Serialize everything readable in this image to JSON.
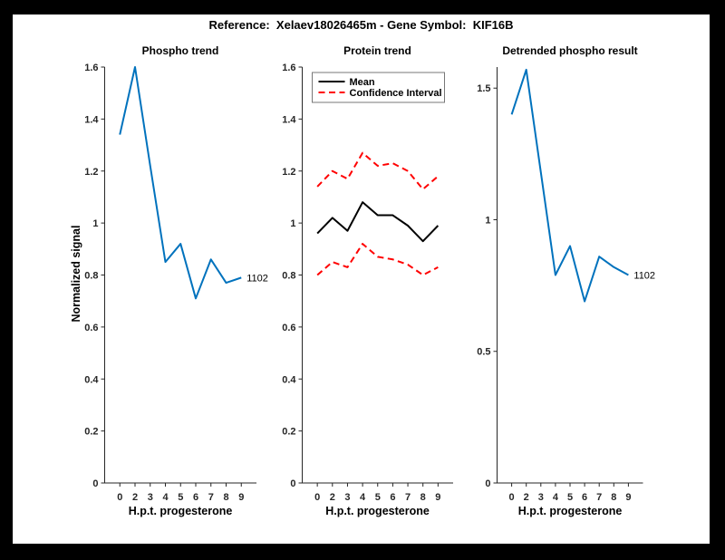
{
  "window": {
    "frame_color": "#000000",
    "canvas_color": "#ffffff"
  },
  "figure_title": "Reference:  Xelaev18026465m - Gene Symbol:  KIF16B",
  "axis_color": "#262626",
  "chart_data": [
    {
      "type": "line",
      "title": "Phospho trend",
      "xlabel": "H.p.t. progesterone",
      "ylabel": "Normalized signal",
      "x_tick_labels": [
        "0",
        "2",
        "3",
        "4",
        "5",
        "6",
        "7",
        "8",
        "9"
      ],
      "y_ticks": [
        0,
        0.2,
        0.4,
        0.6,
        0.8,
        1,
        1.2,
        1.4,
        1.6
      ],
      "y_tick_labels": [
        "0",
        "0.2",
        "0.4",
        "0.6",
        "0.8",
        "1",
        "1.2",
        "1.4",
        "1.6"
      ],
      "ylim": [
        0,
        1.6
      ],
      "grid": false,
      "legend": null,
      "series": [
        {
          "name": "Phospho signal",
          "color": "#0072BD",
          "style": "solid",
          "values": [
            1.34,
            1.6,
            1.22,
            0.85,
            0.92,
            0.71,
            0.86,
            0.77,
            0.79
          ]
        }
      ],
      "end_label": "1102"
    },
    {
      "type": "line",
      "title": "Protein trend",
      "xlabel": "H.p.t. progesterone",
      "ylabel": "",
      "x_tick_labels": [
        "0",
        "2",
        "3",
        "4",
        "5",
        "6",
        "7",
        "8",
        "9"
      ],
      "y_ticks": [
        0,
        0.2,
        0.4,
        0.6,
        0.8,
        1,
        1.2,
        1.4,
        1.6
      ],
      "y_tick_labels": [
        "0",
        "0.2",
        "0.4",
        "0.6",
        "0.8",
        "1",
        "1.2",
        "1.4",
        "1.6"
      ],
      "ylim": [
        0,
        1.6
      ],
      "grid": false,
      "legend": {
        "position": "top-inside",
        "entries": [
          {
            "label": "Mean",
            "color": "#000000",
            "style": "solid"
          },
          {
            "label": "Confidence Interval",
            "color": "#ff0000",
            "style": "dashed"
          }
        ]
      },
      "series": [
        {
          "name": "Mean",
          "color": "#000000",
          "style": "solid",
          "values": [
            0.96,
            1.02,
            0.97,
            1.08,
            1.03,
            1.03,
            0.99,
            0.93,
            0.99
          ]
        },
        {
          "name": "Confidence Interval (upper)",
          "color": "#ff0000",
          "style": "dashed",
          "values": [
            1.14,
            1.2,
            1.17,
            1.27,
            1.22,
            1.23,
            1.2,
            1.13,
            1.18
          ]
        },
        {
          "name": "Confidence Interval (lower)",
          "color": "#ff0000",
          "style": "dashed",
          "values": [
            0.8,
            0.85,
            0.83,
            0.92,
            0.87,
            0.86,
            0.84,
            0.8,
            0.83
          ]
        }
      ],
      "end_label": null
    },
    {
      "type": "line",
      "title": "Detrended phospho result",
      "xlabel": "H.p.t. progesterone",
      "ylabel": "",
      "x_tick_labels": [
        "0",
        "2",
        "3",
        "4",
        "5",
        "6",
        "7",
        "8",
        "9"
      ],
      "y_ticks": [
        0,
        0.5,
        1,
        1.5
      ],
      "y_tick_labels": [
        "0",
        "0.5",
        "1",
        "1.5"
      ],
      "ylim": [
        0,
        1.58
      ],
      "grid": false,
      "legend": null,
      "series": [
        {
          "name": "Detrended phospho signal",
          "color": "#0072BD",
          "style": "solid",
          "values": [
            1.4,
            1.57,
            1.18,
            0.79,
            0.9,
            0.69,
            0.86,
            0.82,
            0.79
          ]
        }
      ],
      "end_label": "1102"
    }
  ]
}
